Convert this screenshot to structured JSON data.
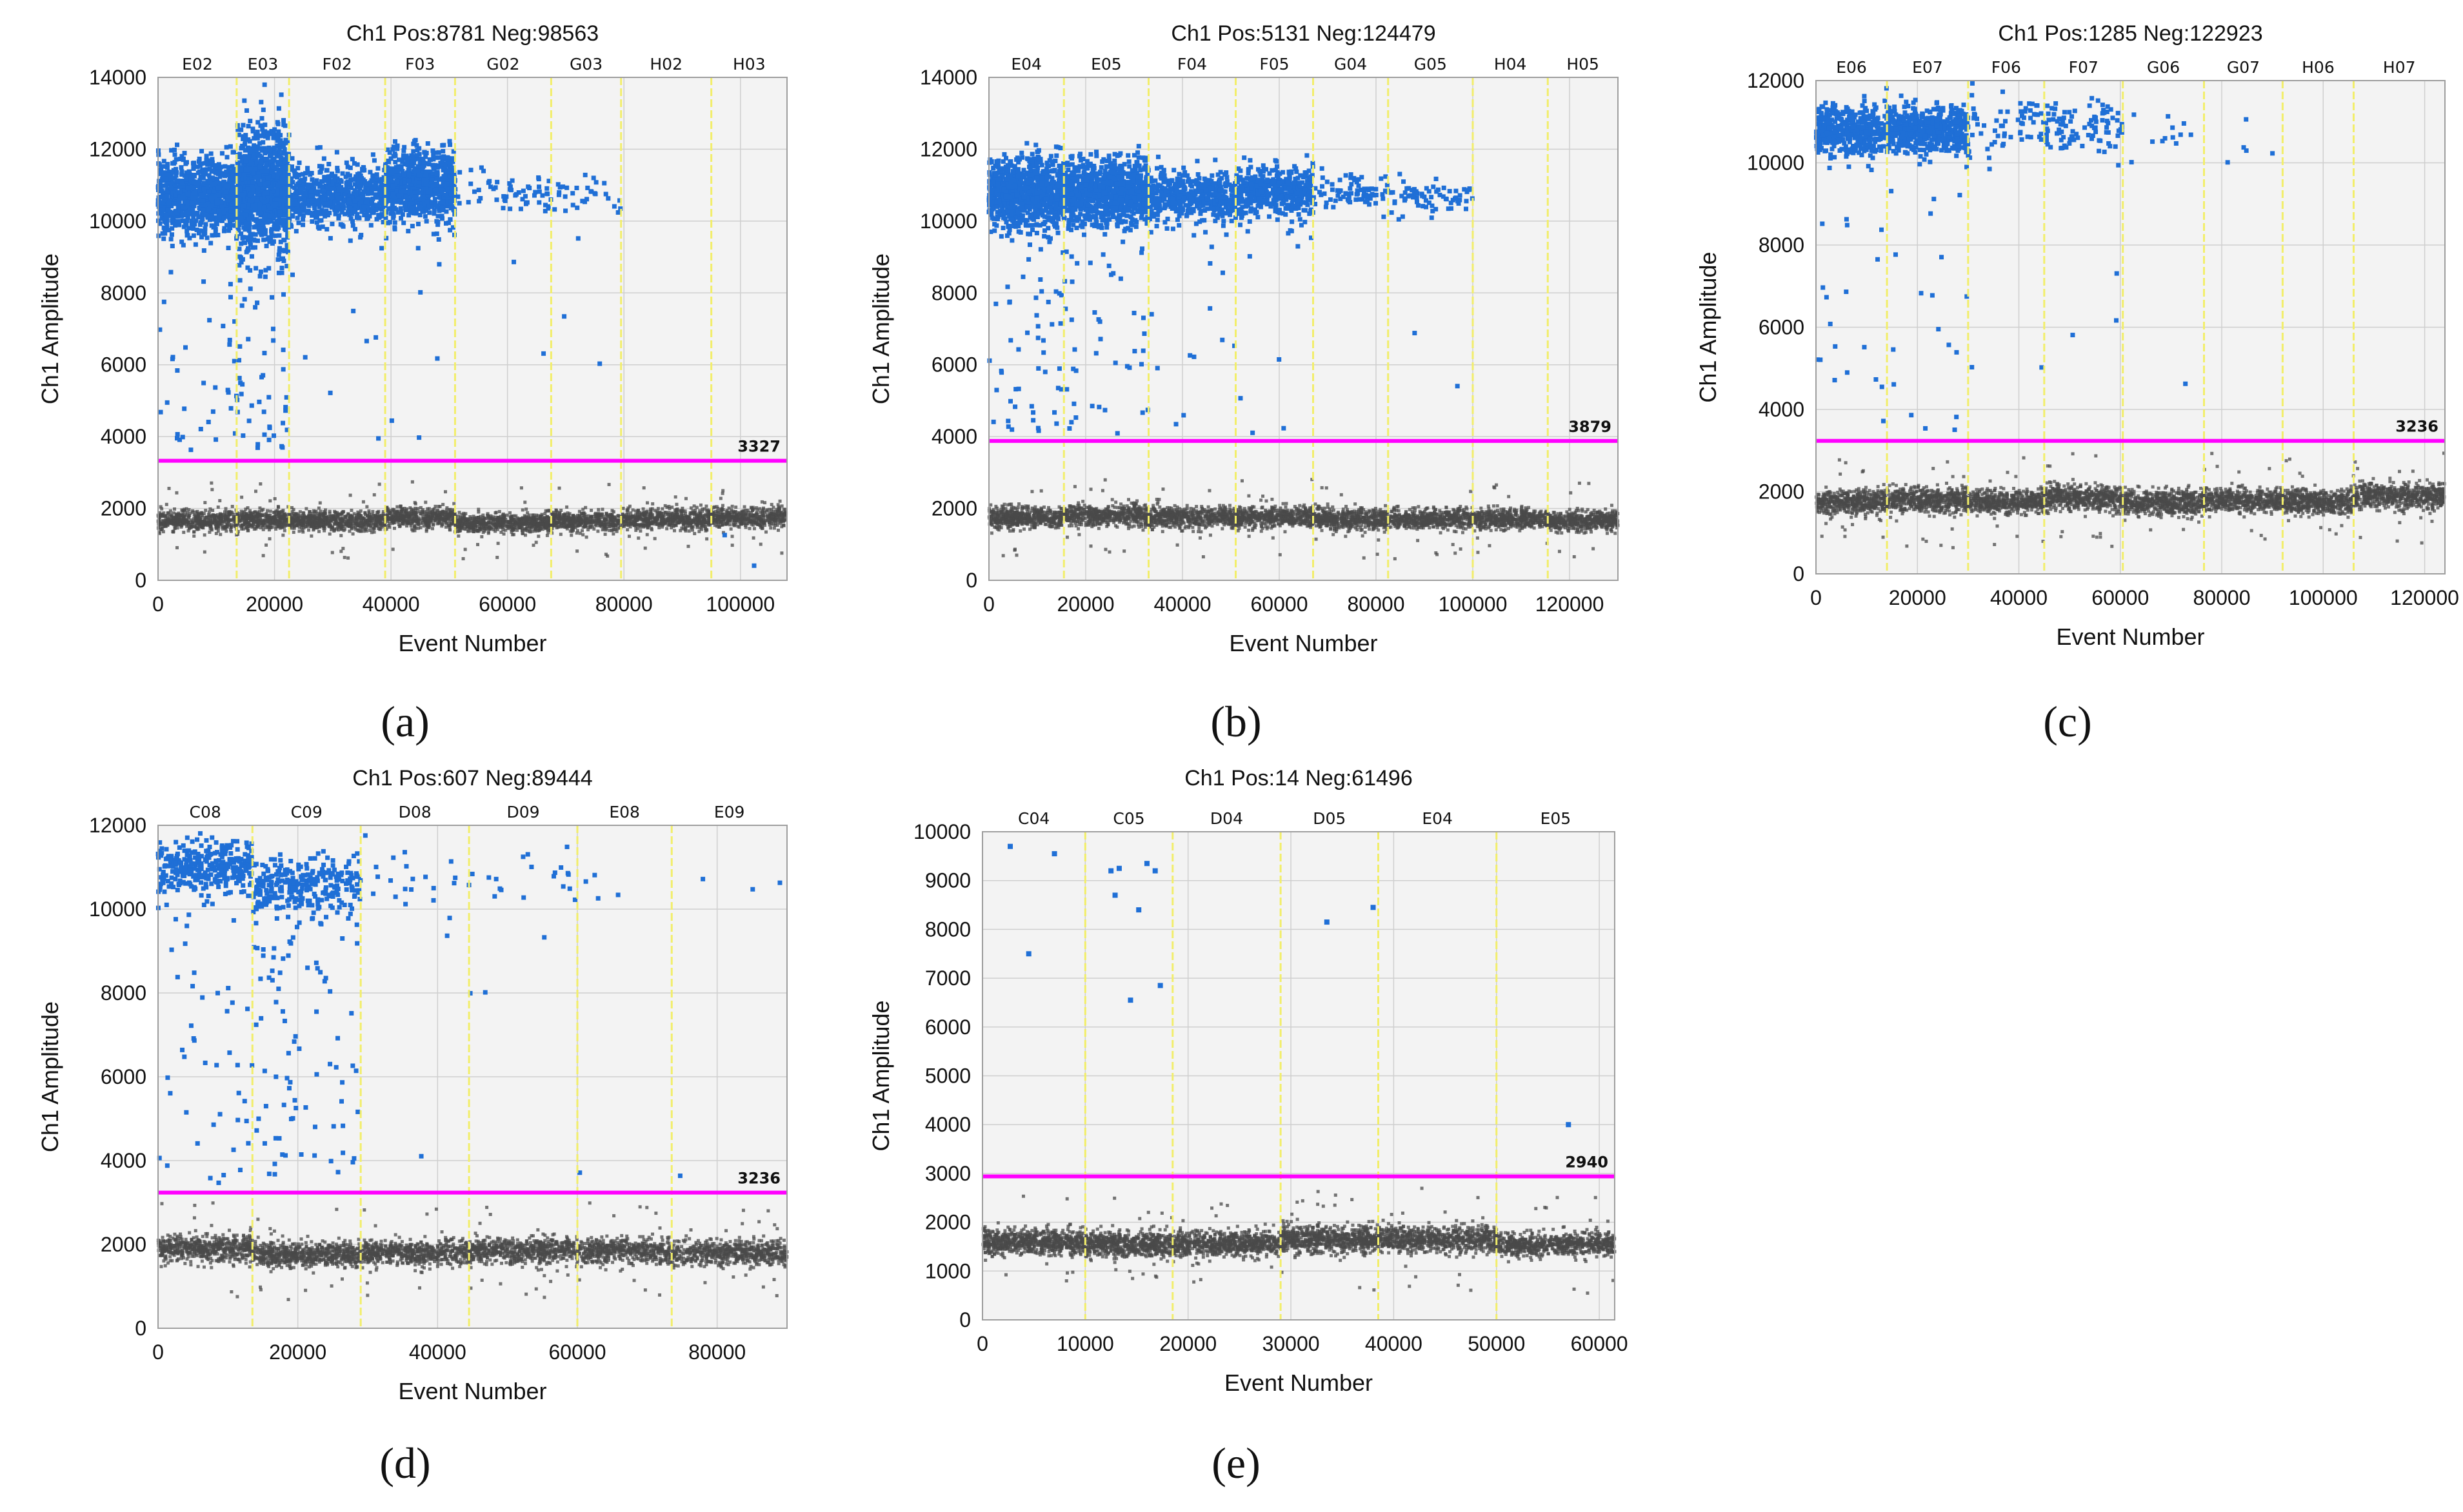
{
  "figure": {
    "colors": {
      "positive": "#1f6fd6",
      "negative": "#4a4a4a",
      "threshold": "#ff00ff",
      "divider": "#f2ee6a",
      "plot_background": "#f3f3f3",
      "grid": "#cfcfcf"
    }
  },
  "chart_data": [
    {
      "id": "a",
      "type": "scatter",
      "caption": "(a)",
      "title": "Ch1 Pos:8781 Neg:98563",
      "xlabel": "Event Number",
      "ylabel": "Ch1 Amplitude",
      "xlim": [
        0,
        108000
      ],
      "ylim": [
        0,
        14000
      ],
      "xticks": [
        0,
        20000,
        40000,
        60000,
        80000,
        100000
      ],
      "yticks": [
        0,
        2000,
        4000,
        6000,
        8000,
        10000,
        12000,
        14000
      ],
      "threshold": 3327,
      "threshold_label": "3327",
      "wells": [
        "E02",
        "E03",
        "F02",
        "F03",
        "G02",
        "G03",
        "H02",
        "H03"
      ],
      "well_bounds": [
        0,
        13500,
        22500,
        39000,
        51000,
        67500,
        79500,
        95000,
        108000
      ],
      "pos_counts": [
        900,
        1100,
        650,
        750,
        60,
        30,
        0,
        0
      ],
      "pos_spread": [
        500,
        750,
        400,
        500,
        250,
        300,
        0,
        0
      ],
      "pos_levels": [
        10700,
        10900,
        10700,
        11000,
        10800,
        10700,
        0,
        0
      ],
      "rain_counts": [
        40,
        70,
        10,
        6,
        2,
        4,
        0,
        2
      ],
      "neg_levels": [
        1650,
        1700,
        1650,
        1750,
        1600,
        1650,
        1700,
        1750
      ],
      "neg_counts": [
        500,
        350,
        650,
        450,
        650,
        450,
        600,
        450
      ]
    },
    {
      "id": "b",
      "type": "scatter",
      "caption": "(b)",
      "title": "Ch1 Pos:5131 Neg:124479",
      "xlabel": "Event Number",
      "ylabel": "Ch1 Amplitude",
      "xlim": [
        0,
        130000
      ],
      "ylim": [
        0,
        14000
      ],
      "xticks": [
        0,
        20000,
        40000,
        60000,
        80000,
        100000,
        120000
      ],
      "yticks": [
        0,
        2000,
        4000,
        6000,
        8000,
        10000,
        12000,
        14000
      ],
      "threshold": 3879,
      "threshold_label": "3879",
      "wells": [
        "E04",
        "E05",
        "F04",
        "F05",
        "G04",
        "G05",
        "H04",
        "H05"
      ],
      "well_bounds": [
        0,
        15500,
        33000,
        51000,
        67000,
        82500,
        100000,
        115500,
        130000
      ],
      "pos_counts": [
        900,
        900,
        450,
        450,
        80,
        70,
        0,
        0
      ],
      "pos_spread": [
        450,
        450,
        350,
        350,
        250,
        250,
        0,
        0
      ],
      "pos_levels": [
        10800,
        10800,
        10700,
        10800,
        10800,
        10700,
        0,
        0
      ],
      "rain_counts": [
        60,
        50,
        12,
        10,
        0,
        2,
        0,
        0
      ],
      "neg_levels": [
        1750,
        1800,
        1750,
        1750,
        1700,
        1700,
        1700,
        1650
      ],
      "neg_counts": [
        550,
        550,
        550,
        500,
        550,
        550,
        500,
        500
      ]
    },
    {
      "id": "c",
      "type": "scatter",
      "caption": "(c)",
      "title": "Ch1 Pos:1285 Neg:122923",
      "xlabel": "Event Number",
      "ylabel": "Ch1 Amplitude",
      "xlim": [
        0,
        124000
      ],
      "ylim": [
        0,
        12000
      ],
      "xticks": [
        0,
        20000,
        40000,
        60000,
        80000,
        100000,
        120000
      ],
      "yticks": [
        0,
        2000,
        4000,
        6000,
        8000,
        10000,
        12000
      ],
      "threshold": 3236,
      "threshold_label": "3236",
      "wells": [
        "E06",
        "E07",
        "F06",
        "F07",
        "G06",
        "G07",
        "H06",
        "H07"
      ],
      "well_bounds": [
        0,
        14000,
        30000,
        45000,
        60500,
        76500,
        92000,
        106000,
        124000
      ],
      "pos_counts": [
        450,
        550,
        60,
        100,
        12,
        5,
        0,
        0
      ],
      "pos_spread": [
        300,
        300,
        350,
        350,
        300,
        300,
        0,
        0
      ],
      "pos_levels": [
        10800,
        10800,
        10900,
        10900,
        10600,
        10500,
        0,
        0
      ],
      "rain_counts": [
        20,
        18,
        3,
        3,
        1,
        0,
        0,
        0
      ],
      "neg_levels": [
        1750,
        1800,
        1750,
        1850,
        1750,
        1800,
        1750,
        1900
      ],
      "neg_counts": [
        500,
        550,
        500,
        550,
        550,
        500,
        500,
        600
      ]
    },
    {
      "id": "d",
      "type": "scatter",
      "caption": "(d)",
      "title": "Ch1 Pos:607 Neg:89444",
      "xlabel": "Event Number",
      "ylabel": "Ch1 Amplitude",
      "xlim": [
        0,
        90000
      ],
      "ylim": [
        0,
        12000
      ],
      "xticks": [
        0,
        20000,
        40000,
        60000,
        80000
      ],
      "yticks": [
        0,
        2000,
        4000,
        6000,
        8000,
        10000,
        12000
      ],
      "threshold": 3236,
      "threshold_label": "3236",
      "wells": [
        "C08",
        "C09",
        "D08",
        "D09",
        "E08",
        "E09"
      ],
      "well_bounds": [
        0,
        13500,
        29000,
        44500,
        60000,
        73500,
        90000
      ],
      "pos_counts": [
        320,
        280,
        20,
        18,
        4,
        3
      ],
      "pos_spread": [
        300,
        350,
        350,
        400,
        400,
        400
      ],
      "pos_levels": [
        11000,
        10600,
        10800,
        10800,
        10800,
        10500
      ],
      "rain_counts": [
        50,
        90,
        3,
        4,
        1,
        1
      ],
      "neg_levels": [
        1900,
        1750,
        1800,
        1850,
        1850,
        1800
      ],
      "neg_counts": [
        550,
        650,
        600,
        600,
        500,
        600
      ]
    },
    {
      "id": "e",
      "type": "scatter",
      "caption": "(e)",
      "title": "Ch1 Pos:14 Neg:61496",
      "xlabel": "Event Number",
      "ylabel": "Ch1 Amplitude",
      "xlim": [
        0,
        61500
      ],
      "ylim": [
        0,
        10000
      ],
      "xticks": [
        0,
        10000,
        20000,
        30000,
        40000,
        50000,
        60000
      ],
      "yticks": [
        0,
        1000,
        2000,
        3000,
        4000,
        5000,
        6000,
        7000,
        8000,
        9000,
        10000
      ],
      "threshold": 2940,
      "threshold_label": "2940",
      "wells": [
        "C04",
        "C05",
        "D04",
        "D05",
        "E04",
        "E05"
      ],
      "well_bounds": [
        0,
        10000,
        18500,
        29000,
        38500,
        50000,
        61500
      ],
      "pos_points": [
        [
          2700,
          9700
        ],
        [
          4500,
          7500
        ],
        [
          7000,
          9550
        ],
        [
          12500,
          9200
        ],
        [
          12900,
          8700
        ],
        [
          13300,
          9250
        ],
        [
          14400,
          6550
        ],
        [
          15200,
          8400
        ],
        [
          16000,
          9350
        ],
        [
          16800,
          9200
        ],
        [
          17300,
          6850
        ],
        [
          33500,
          8150
        ],
        [
          38000,
          8450
        ],
        [
          57000,
          4000
        ]
      ],
      "neg_levels": [
        1600,
        1550,
        1550,
        1650,
        1650,
        1550
      ],
      "neg_counts": [
        700,
        600,
        700,
        700,
        750,
        700
      ]
    }
  ]
}
